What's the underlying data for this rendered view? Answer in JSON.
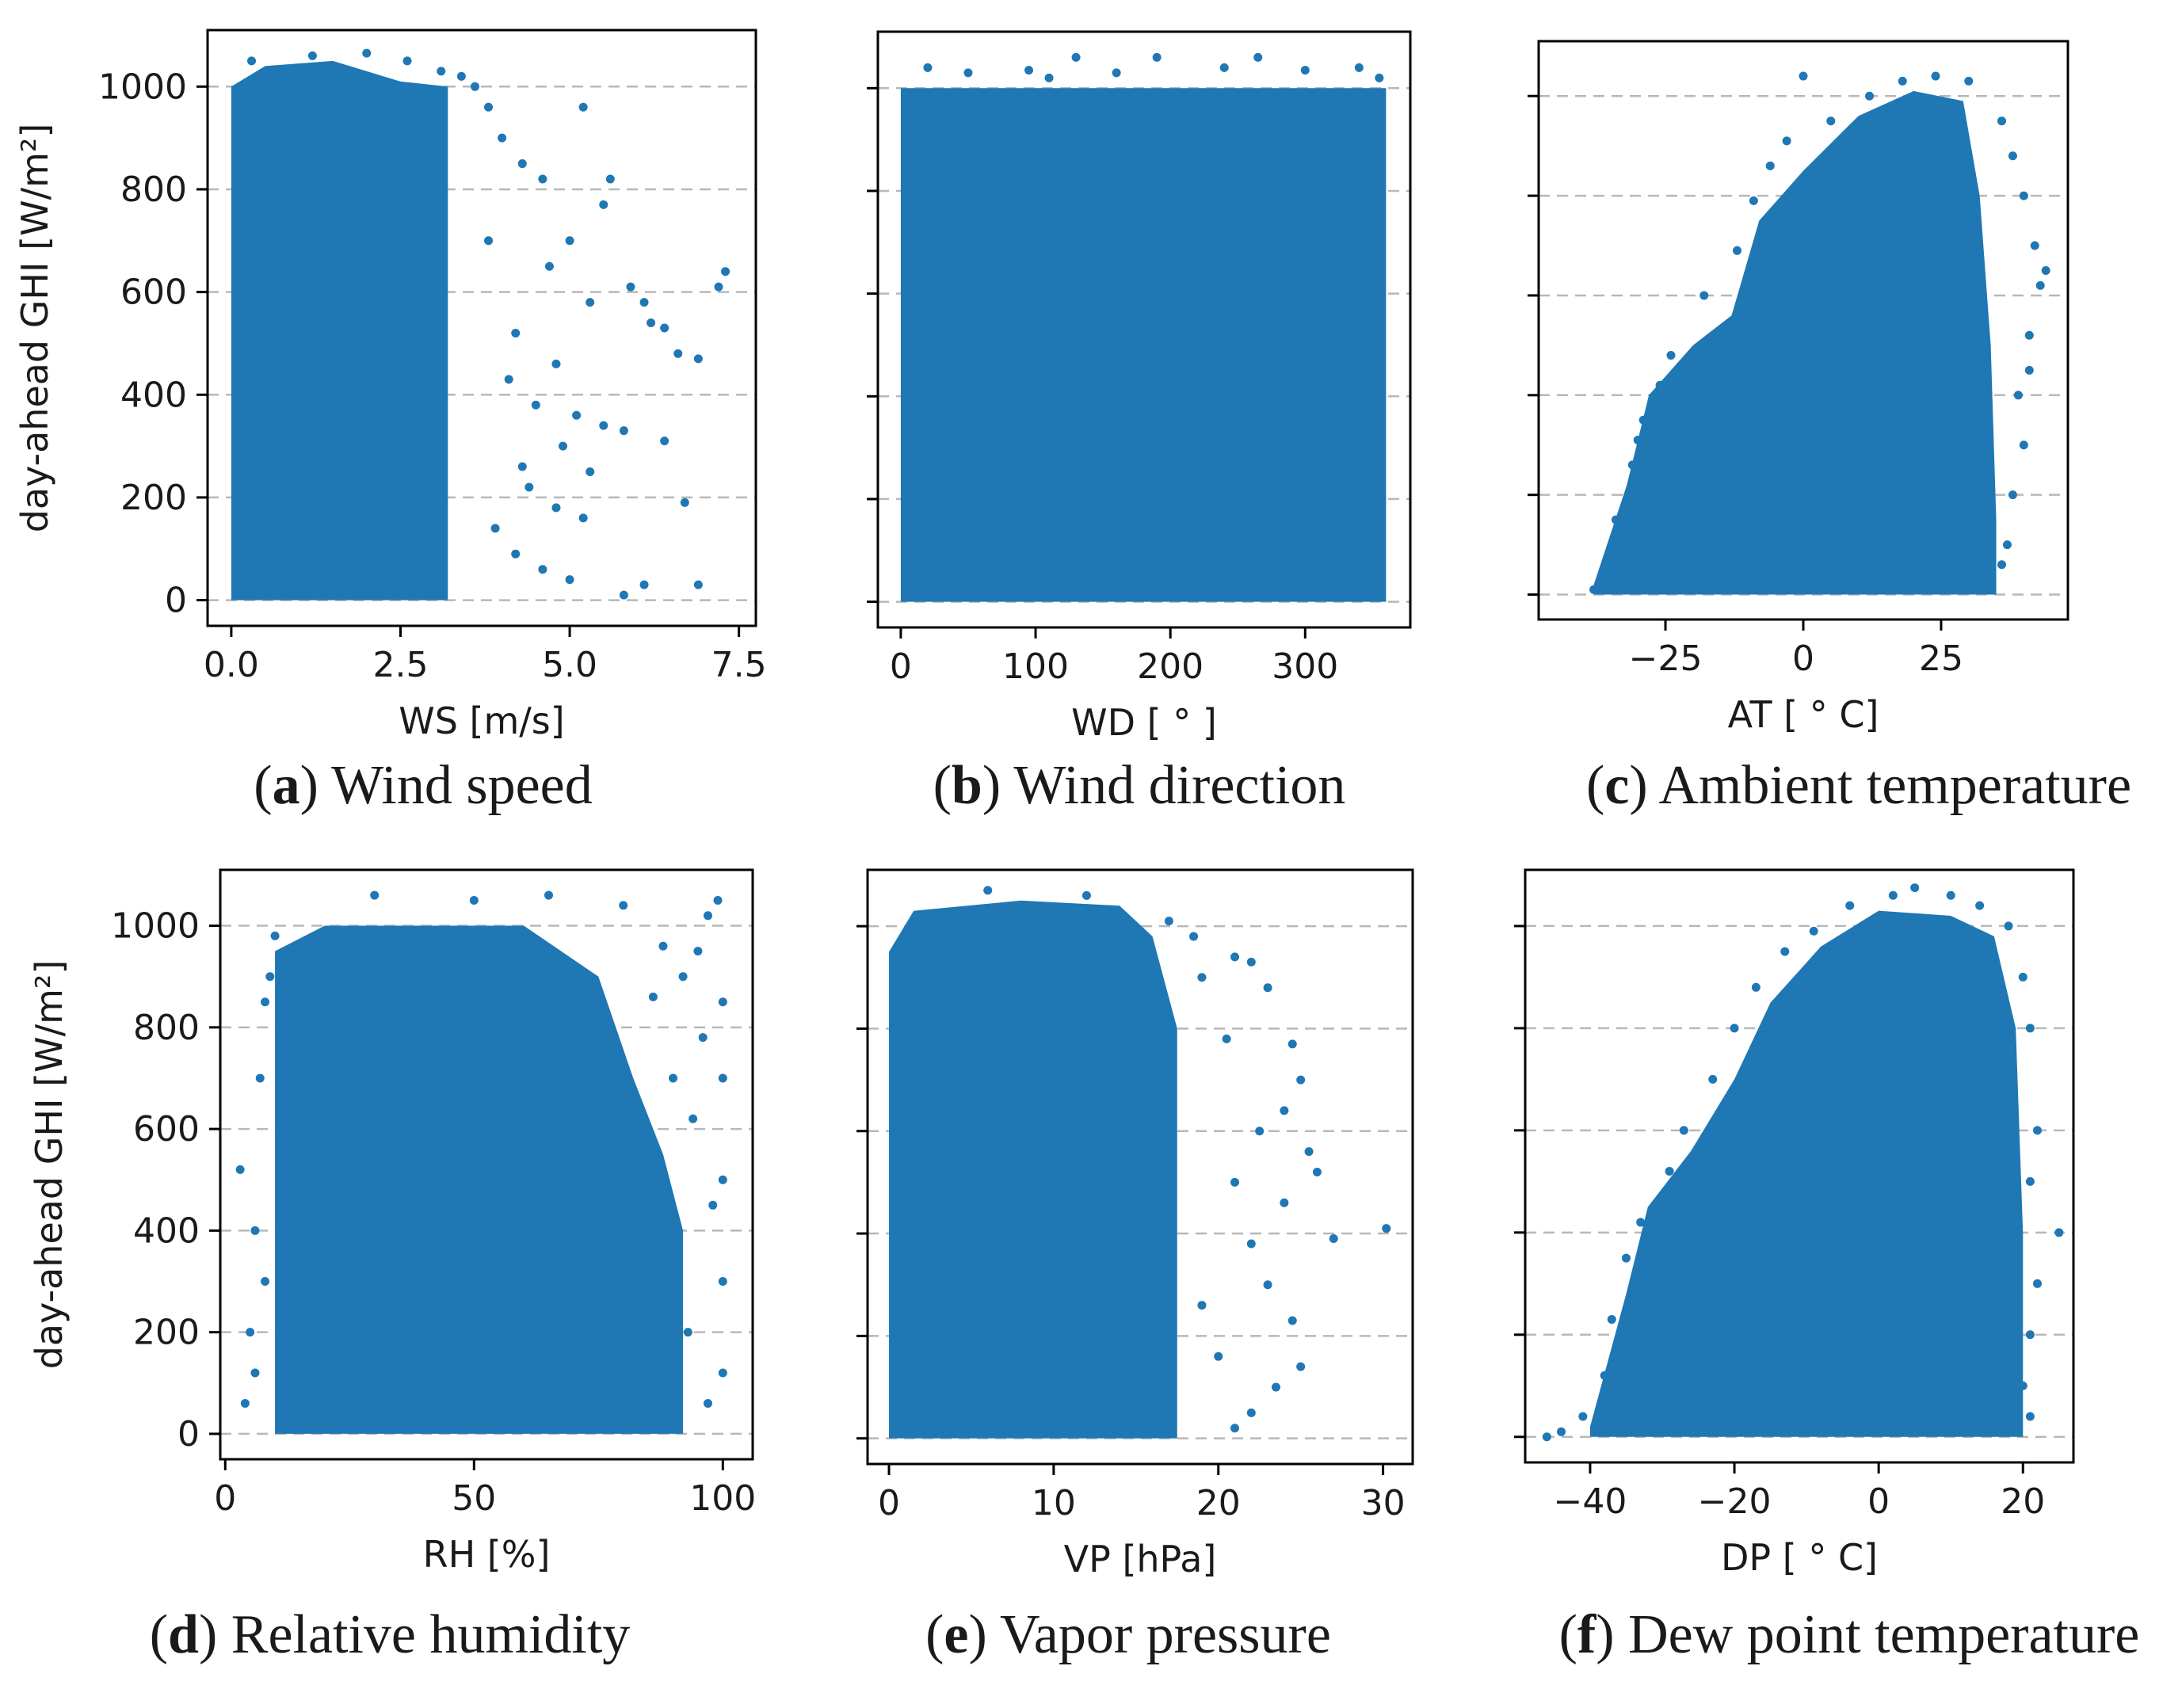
{
  "figure": {
    "colors": {
      "points": "#1f77b4",
      "grid": "#b8b8b8",
      "frame": "#000000",
      "text": "#1a1a1a"
    }
  },
  "chart_data": [
    {
      "id": "a",
      "type": "scatter",
      "caption_letter": "a",
      "caption_text": "Wind speed",
      "xlabel": "WS [m/s]",
      "ylabel": "day-ahead GHI [W/m²]",
      "xlim": [
        -0.35,
        7.75
      ],
      "ylim": [
        -50,
        1110
      ],
      "xticks": [
        0,
        2.5,
        5,
        7.5
      ],
      "xtick_labels": [
        "0.0",
        "2.5",
        "5.0",
        "7.5"
      ],
      "yticks": [
        0,
        200,
        400,
        600,
        800,
        1000
      ],
      "ytick_labels": [
        "0",
        "200",
        "400",
        "600",
        "800",
        "1000"
      ],
      "show_ytick_labels": true,
      "grid": "horizontal dashed",
      "dense_region": [
        {
          "x": 0.0,
          "y0": 0,
          "y1": 1000
        },
        {
          "x": 0.5,
          "y0": 0,
          "y1": 1040
        },
        {
          "x": 1.5,
          "y0": 0,
          "y1": 1050
        },
        {
          "x": 2.5,
          "y0": 0,
          "y1": 1010
        },
        {
          "x": 3.2,
          "y0": 0,
          "y1": 1000
        }
      ],
      "points": [
        [
          0.3,
          1050
        ],
        [
          1.2,
          1060
        ],
        [
          2.0,
          1065
        ],
        [
          2.6,
          1050
        ],
        [
          3.1,
          1030
        ],
        [
          3.4,
          1020
        ],
        [
          3.6,
          1000
        ],
        [
          3.8,
          960
        ],
        [
          4.0,
          900
        ],
        [
          4.3,
          850
        ],
        [
          4.6,
          820
        ],
        [
          5.2,
          960
        ],
        [
          5.6,
          820
        ],
        [
          5.5,
          770
        ],
        [
          5.0,
          700
        ],
        [
          4.7,
          650
        ],
        [
          5.3,
          580
        ],
        [
          5.9,
          610
        ],
        [
          6.1,
          580
        ],
        [
          6.2,
          540
        ],
        [
          6.4,
          530
        ],
        [
          6.6,
          480
        ],
        [
          6.9,
          470
        ],
        [
          7.2,
          610
        ],
        [
          7.3,
          640
        ],
        [
          4.2,
          520
        ],
        [
          4.8,
          460
        ],
        [
          4.5,
          380
        ],
        [
          5.1,
          360
        ],
        [
          5.5,
          340
        ],
        [
          5.8,
          330
        ],
        [
          6.4,
          310
        ],
        [
          4.9,
          300
        ],
        [
          5.3,
          250
        ],
        [
          4.4,
          220
        ],
        [
          4.8,
          180
        ],
        [
          5.2,
          160
        ],
        [
          6.7,
          190
        ],
        [
          4.2,
          90
        ],
        [
          4.6,
          60
        ],
        [
          5.0,
          40
        ],
        [
          5.8,
          10
        ],
        [
          6.1,
          30
        ],
        [
          6.9,
          30
        ],
        [
          3.9,
          140
        ],
        [
          4.3,
          260
        ],
        [
          4.1,
          430
        ],
        [
          3.8,
          700
        ]
      ]
    },
    {
      "id": "b",
      "type": "scatter",
      "caption_letter": "b",
      "caption_text": "Wind direction",
      "xlabel": "WD [ ° ]",
      "ylabel": "",
      "xlim": [
        -17,
        378
      ],
      "ylim": [
        -50,
        1110
      ],
      "xticks": [
        0,
        100,
        200,
        300
      ],
      "xtick_labels": [
        "0",
        "100",
        "200",
        "300"
      ],
      "yticks": [
        0,
        200,
        400,
        600,
        800,
        1000
      ],
      "ytick_labels": [],
      "show_ytick_labels": false,
      "grid": "horizontal dashed",
      "dense_region": [
        {
          "x": 0,
          "y0": 0,
          "y1": 1000
        },
        {
          "x": 360,
          "y0": 0,
          "y1": 1000
        }
      ],
      "points": [
        [
          20,
          1040
        ],
        [
          50,
          1030
        ],
        [
          95,
          1035
        ],
        [
          110,
          1020
        ],
        [
          160,
          1030
        ],
        [
          190,
          1060
        ],
        [
          240,
          1040
        ],
        [
          265,
          1060
        ],
        [
          300,
          1035
        ],
        [
          340,
          1040
        ],
        [
          355,
          1020
        ],
        [
          130,
          1060
        ]
      ]
    },
    {
      "id": "c",
      "type": "scatter",
      "caption_letter": "c",
      "caption_text": "Ambient temperature",
      "xlabel": "AT [ ° C]",
      "ylabel": "",
      "xlim": [
        -48,
        48
      ],
      "ylim": [
        -50,
        1110
      ],
      "xticks": [
        -25,
        0,
        25
      ],
      "xtick_labels": [
        "−25",
        "0",
        "25"
      ],
      "yticks": [
        0,
        200,
        400,
        600,
        800,
        1000
      ],
      "ytick_labels": [],
      "show_ytick_labels": false,
      "grid": "horizontal dashed",
      "dense_region": [
        {
          "x": -38,
          "y0": 0,
          "y1": 20
        },
        {
          "x": -32,
          "y0": 0,
          "y1": 220
        },
        {
          "x": -28,
          "y0": 0,
          "y1": 400
        },
        {
          "x": -20,
          "y0": 0,
          "y1": 500
        },
        {
          "x": -13,
          "y0": 0,
          "y1": 560
        },
        {
          "x": -8,
          "y0": 0,
          "y1": 750
        },
        {
          "x": 0,
          "y0": 0,
          "y1": 850
        },
        {
          "x": 10,
          "y0": 0,
          "y1": 960
        },
        {
          "x": 20,
          "y0": 0,
          "y1": 1010
        },
        {
          "x": 29,
          "y0": 0,
          "y1": 990
        },
        {
          "x": 32,
          "y0": 0,
          "y1": 800
        },
        {
          "x": 34,
          "y0": 0,
          "y1": 500
        },
        {
          "x": 35,
          "y0": 0,
          "y1": 150
        },
        {
          "x": 35,
          "y0": 0,
          "y1": 0
        }
      ],
      "points": [
        [
          -38,
          10
        ],
        [
          -36,
          30
        ],
        [
          -33,
          90
        ],
        [
          -34,
          150
        ],
        [
          -31,
          260
        ],
        [
          -29,
          350
        ],
        [
          -24,
          480
        ],
        [
          -18,
          600
        ],
        [
          -12,
          690
        ],
        [
          -9,
          790
        ],
        [
          -6,
          860
        ],
        [
          -3,
          910
        ],
        [
          0,
          1040
        ],
        [
          5,
          950
        ],
        [
          12,
          1000
        ],
        [
          18,
          1030
        ],
        [
          24,
          1040
        ],
        [
          30,
          1030
        ],
        [
          36,
          950
        ],
        [
          38,
          880
        ],
        [
          40,
          800
        ],
        [
          42,
          700
        ],
        [
          43,
          620
        ],
        [
          41,
          520
        ],
        [
          39,
          400
        ],
        [
          40,
          300
        ],
        [
          38,
          200
        ],
        [
          37,
          100
        ],
        [
          36,
          60
        ],
        [
          44,
          650
        ],
        [
          41,
          450
        ],
        [
          -35,
          20
        ],
        [
          -30,
          310
        ],
        [
          -26,
          420
        ]
      ]
    },
    {
      "id": "d",
      "type": "scatter",
      "caption_letter": "d",
      "caption_text": "Relative humidity",
      "xlabel": "RH [%]",
      "ylabel": "day-ahead GHI [W/m²]",
      "xlim": [
        -1,
        106
      ],
      "ylim": [
        -50,
        1110
      ],
      "xticks": [
        0,
        50,
        100
      ],
      "xtick_labels": [
        "0",
        "50",
        "100"
      ],
      "yticks": [
        0,
        200,
        400,
        600,
        800,
        1000
      ],
      "ytick_labels": [
        "0",
        "200",
        "400",
        "600",
        "800",
        "1000"
      ],
      "show_ytick_labels": true,
      "grid": "horizontal dashed",
      "dense_region": [
        {
          "x": 10,
          "y0": 0,
          "y1": 950
        },
        {
          "x": 20,
          "y0": 0,
          "y1": 1000
        },
        {
          "x": 60,
          "y0": 0,
          "y1": 1000
        },
        {
          "x": 75,
          "y0": 0,
          "y1": 900
        },
        {
          "x": 82,
          "y0": 0,
          "y1": 700
        },
        {
          "x": 88,
          "y0": 0,
          "y1": 550
        },
        {
          "x": 92,
          "y0": 0,
          "y1": 400
        }
      ],
      "points": [
        [
          4,
          60
        ],
        [
          5,
          200
        ],
        [
          6,
          400
        ],
        [
          7,
          700
        ],
        [
          8,
          850
        ],
        [
          9,
          900
        ],
        [
          10,
          980
        ],
        [
          3,
          520
        ],
        [
          6,
          120
        ],
        [
          8,
          300
        ],
        [
          92,
          900
        ],
        [
          95,
          950
        ],
        [
          97,
          1020
        ],
        [
          99,
          1050
        ],
        [
          100,
          850
        ],
        [
          100,
          700
        ],
        [
          100,
          500
        ],
        [
          100,
          300
        ],
        [
          100,
          120
        ],
        [
          96,
          780
        ],
        [
          94,
          620
        ],
        [
          98,
          450
        ],
        [
          93,
          200
        ],
        [
          97,
          60
        ],
        [
          90,
          700
        ],
        [
          86,
          860
        ],
        [
          88,
          960
        ],
        [
          30,
          1060
        ],
        [
          50,
          1050
        ],
        [
          65,
          1060
        ],
        [
          80,
          1040
        ]
      ]
    },
    {
      "id": "e",
      "type": "scatter",
      "caption_letter": "e",
      "caption_text": "Vapor pressure",
      "xlabel": "VP [hPa]",
      "ylabel": "",
      "xlim": [
        -1.3,
        31.8
      ],
      "ylim": [
        -50,
        1110
      ],
      "xticks": [
        0,
        10,
        20,
        30
      ],
      "xtick_labels": [
        "0",
        "10",
        "20",
        "30"
      ],
      "yticks": [
        0,
        200,
        400,
        600,
        800,
        1000
      ],
      "ytick_labels": [],
      "show_ytick_labels": false,
      "grid": "horizontal dashed",
      "dense_region": [
        {
          "x": 0,
          "y0": 0,
          "y1": 950
        },
        {
          "x": 1.5,
          "y0": 0,
          "y1": 1030
        },
        {
          "x": 8,
          "y0": 0,
          "y1": 1050
        },
        {
          "x": 14,
          "y0": 0,
          "y1": 1040
        },
        {
          "x": 16,
          "y0": 0,
          "y1": 980
        },
        {
          "x": 17.5,
          "y0": 0,
          "y1": 800
        },
        {
          "x": 17.5,
          "y0": 0,
          "y1": 0
        }
      ],
      "points": [
        [
          19,
          900
        ],
        [
          21,
          940
        ],
        [
          22,
          930
        ],
        [
          23,
          880
        ],
        [
          24.5,
          770
        ],
        [
          25,
          700
        ],
        [
          24,
          640
        ],
        [
          25.5,
          560
        ],
        [
          26,
          520
        ],
        [
          24,
          460
        ],
        [
          27,
          390
        ],
        [
          30.2,
          410
        ],
        [
          22,
          380
        ],
        [
          23,
          300
        ],
        [
          24.5,
          230
        ],
        [
          25,
          140
        ],
        [
          23.5,
          100
        ],
        [
          22,
          50
        ],
        [
          21,
          20
        ],
        [
          20,
          160
        ],
        [
          19,
          260
        ],
        [
          21,
          500
        ],
        [
          22.5,
          600
        ],
        [
          20.5,
          780
        ],
        [
          18.5,
          980
        ],
        [
          17,
          1010
        ],
        [
          12,
          1060
        ],
        [
          6,
          1070
        ]
      ]
    },
    {
      "id": "f",
      "type": "scatter",
      "caption_letter": "f",
      "caption_text": "Dew point temperature",
      "xlabel": "DP [ ° C]",
      "ylabel": "",
      "xlim": [
        -49,
        27
      ],
      "ylim": [
        -50,
        1110
      ],
      "xticks": [
        -40,
        -20,
        0,
        20
      ],
      "xtick_labels": [
        "−40",
        "−20",
        "0",
        "20"
      ],
      "yticks": [
        0,
        200,
        400,
        600,
        800,
        1000
      ],
      "ytick_labels": [],
      "show_ytick_labels": false,
      "grid": "horizontal dashed",
      "dense_region": [
        {
          "x": -40,
          "y0": 0,
          "y1": 20
        },
        {
          "x": -35,
          "y0": 0,
          "y1": 280
        },
        {
          "x": -32,
          "y0": 0,
          "y1": 450
        },
        {
          "x": -26,
          "y0": 0,
          "y1": 560
        },
        {
          "x": -20,
          "y0": 0,
          "y1": 700
        },
        {
          "x": -15,
          "y0": 0,
          "y1": 850
        },
        {
          "x": -8,
          "y0": 0,
          "y1": 960
        },
        {
          "x": 0,
          "y0": 0,
          "y1": 1030
        },
        {
          "x": 10,
          "y0": 0,
          "y1": 1020
        },
        {
          "x": 16,
          "y0": 0,
          "y1": 980
        },
        {
          "x": 19,
          "y0": 0,
          "y1": 800
        },
        {
          "x": 20,
          "y0": 0,
          "y1": 400
        },
        {
          "x": 20,
          "y0": 0,
          "y1": 0
        }
      ],
      "points": [
        [
          -46,
          0
        ],
        [
          -44,
          10
        ],
        [
          -41,
          40
        ],
        [
          -38,
          120
        ],
        [
          -37,
          230
        ],
        [
          -35,
          350
        ],
        [
          -33,
          420
        ],
        [
          -29,
          520
        ],
        [
          -27,
          600
        ],
        [
          -23,
          700
        ],
        [
          -20,
          800
        ],
        [
          -17,
          880
        ],
        [
          -13,
          950
        ],
        [
          -9,
          990
        ],
        [
          -4,
          1040
        ],
        [
          2,
          1060
        ],
        [
          5,
          1075
        ],
        [
          10,
          1060
        ],
        [
          14,
          1040
        ],
        [
          18,
          1000
        ],
        [
          20,
          900
        ],
        [
          21,
          800
        ],
        [
          22,
          600
        ],
        [
          21,
          500
        ],
        [
          25,
          400
        ],
        [
          22,
          300
        ],
        [
          21,
          200
        ],
        [
          20,
          100
        ],
        [
          21,
          40
        ]
      ]
    }
  ]
}
